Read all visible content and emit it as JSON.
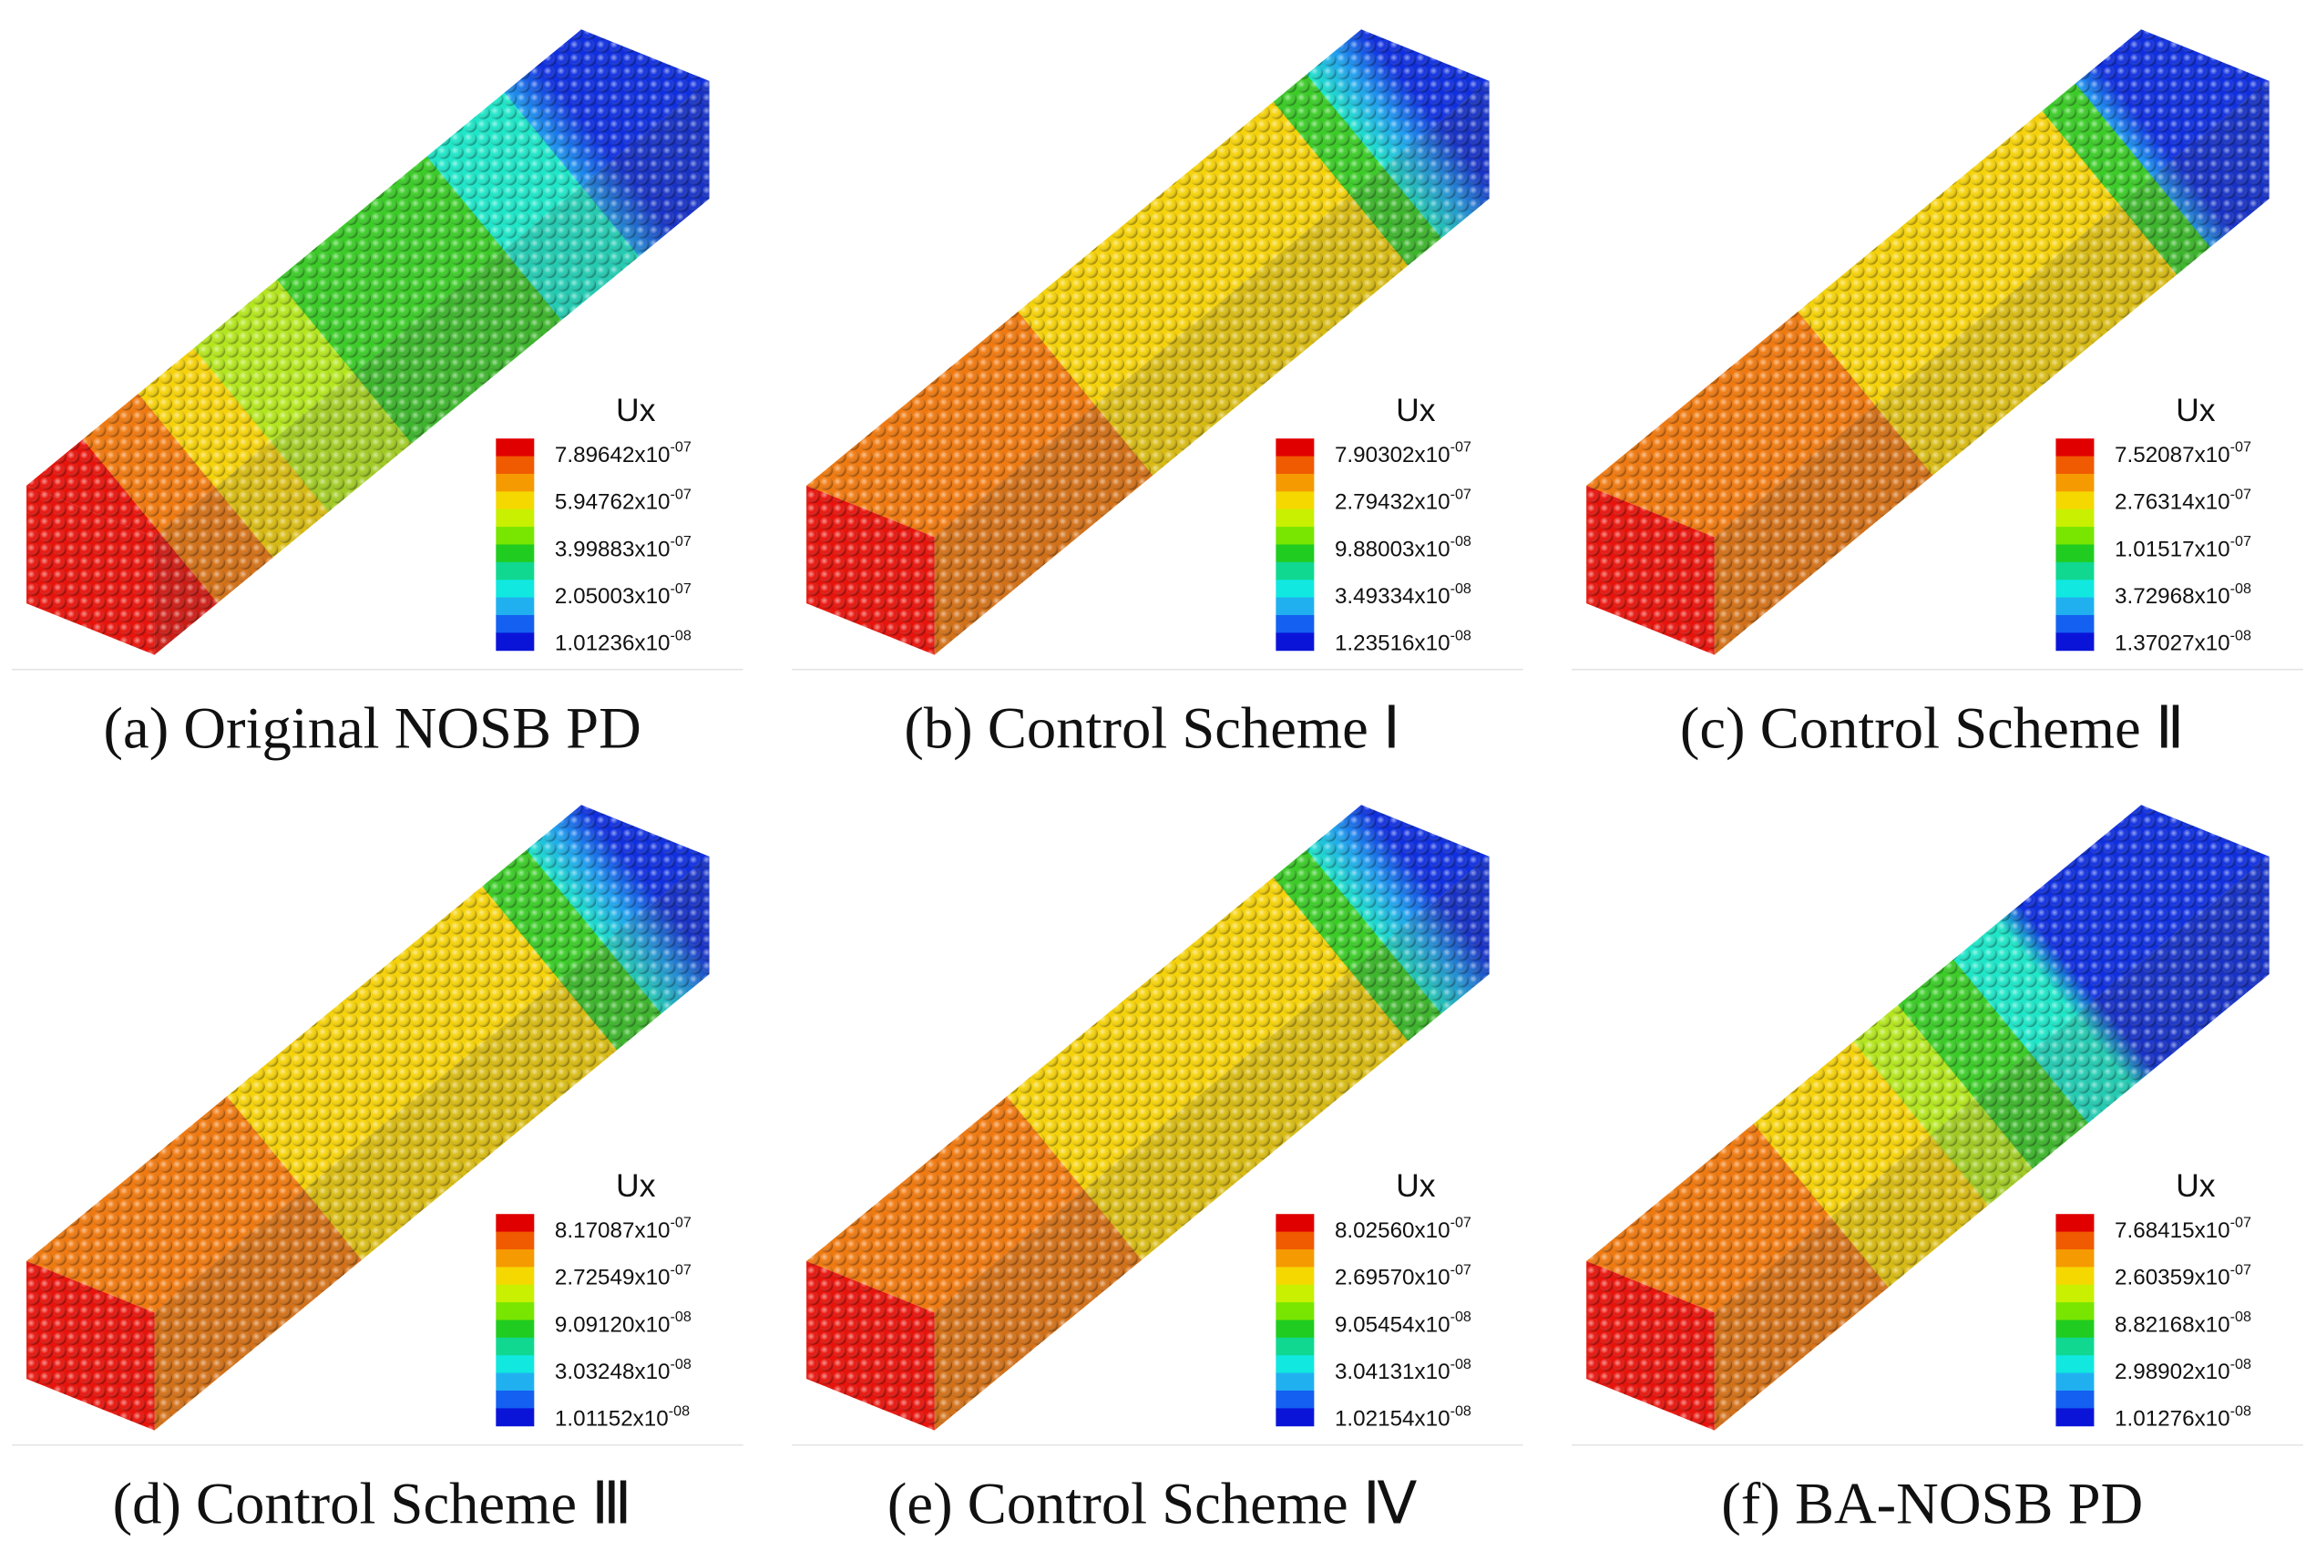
{
  "panels": [
    {
      "caption": "(a) Original NOSB PD",
      "legend_title": "Ux",
      "legend_labels": [
        {
          "base": "7.89642x10",
          "exponent": "-07"
        },
        {
          "base": "5.94762x10",
          "exponent": "-07"
        },
        {
          "base": "3.99883x10",
          "exponent": "-07"
        },
        {
          "base": "2.05003x10",
          "exponent": "-07"
        },
        {
          "base": "1.01236x10",
          "exponent": "-08"
        }
      ]
    },
    {
      "caption": "(b) Control Scheme Ⅰ",
      "legend_title": "Ux",
      "legend_labels": [
        {
          "base": "7.90302x10",
          "exponent": "-07"
        },
        {
          "base": "2.79432x10",
          "exponent": "-07"
        },
        {
          "base": "9.88003x10",
          "exponent": "-08"
        },
        {
          "base": "3.49334x10",
          "exponent": "-08"
        },
        {
          "base": "1.23516x10",
          "exponent": "-08"
        }
      ]
    },
    {
      "caption": "(c) Control Scheme Ⅱ",
      "legend_title": "Ux",
      "legend_labels": [
        {
          "base": "7.52087x10",
          "exponent": "-07"
        },
        {
          "base": "2.76314x10",
          "exponent": "-07"
        },
        {
          "base": "1.01517x10",
          "exponent": "-07"
        },
        {
          "base": "3.72968x10",
          "exponent": "-08"
        },
        {
          "base": "1.37027x10",
          "exponent": "-08"
        }
      ]
    },
    {
      "caption": "(d) Control Scheme Ⅲ",
      "legend_title": "Ux",
      "legend_labels": [
        {
          "base": "8.17087x10",
          "exponent": "-07"
        },
        {
          "base": "2.72549x10",
          "exponent": "-07"
        },
        {
          "base": "9.09120x10",
          "exponent": "-08"
        },
        {
          "base": "3.03248x10",
          "exponent": "-08"
        },
        {
          "base": "1.01152x10",
          "exponent": "-08"
        }
      ]
    },
    {
      "caption": "(e) Control Scheme Ⅳ",
      "legend_title": "Ux",
      "legend_labels": [
        {
          "base": "8.02560x10",
          "exponent": "-07"
        },
        {
          "base": "2.69570x10",
          "exponent": "-07"
        },
        {
          "base": "9.05454x10",
          "exponent": "-08"
        },
        {
          "base": "3.04131x10",
          "exponent": "-08"
        },
        {
          "base": "1.02154x10",
          "exponent": "-08"
        }
      ]
    },
    {
      "caption": "(f) BA-NOSB PD",
      "legend_title": "Ux",
      "legend_labels": [
        {
          "base": "7.68415x10",
          "exponent": "-07"
        },
        {
          "base": "2.60359x10",
          "exponent": "-07"
        },
        {
          "base": "8.82168x10",
          "exponent": "-08"
        },
        {
          "base": "2.98902x10",
          "exponent": "-08"
        },
        {
          "base": "1.01276x10",
          "exponent": "-08"
        }
      ]
    }
  ]
}
